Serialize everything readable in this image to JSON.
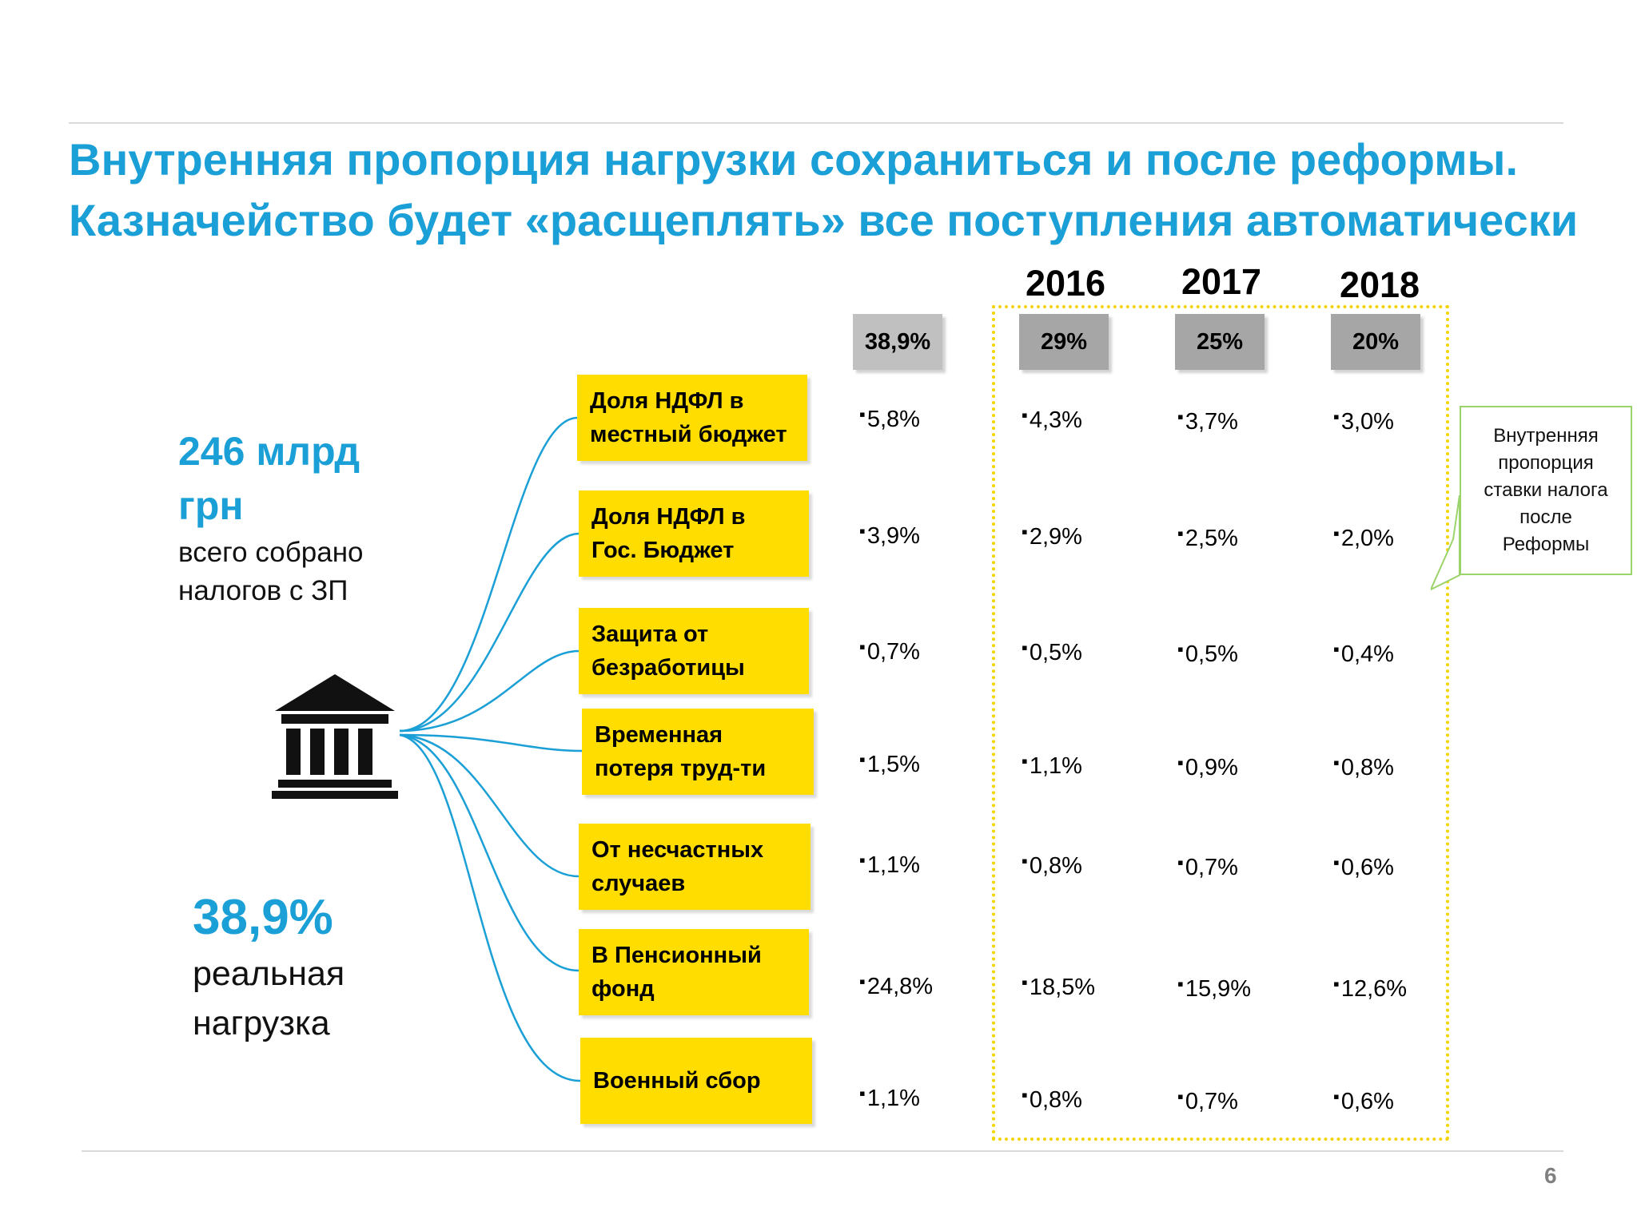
{
  "title": {
    "line1": "Внутренняя пропорция нагрузки сохраниться и после реформы.",
    "line2": "Казначейство будет «расщеплять» все поступления автоматически"
  },
  "summary": {
    "total_line1": "246 млрд",
    "total_line2": "грн",
    "total_desc_line1": "всего собрано",
    "total_desc_line2": "налогов с ЗП",
    "rate_value": "38,9%",
    "rate_desc_line1": "реальная",
    "rate_desc_line2": "нагрузка"
  },
  "icons": {
    "treasury": "bank-building-icon"
  },
  "years": [
    "2016",
    "2017",
    "2018"
  ],
  "header_totals": [
    "38,9%",
    "29%",
    "25%",
    "20%"
  ],
  "categories": [
    "Доля НДФЛ в местный бюджет",
    "Доля НДФЛ в Гос. Бюджет",
    "Защита от безработицы",
    "Временная потеря труд-ти",
    "От несчастных случаев",
    "В Пенсионный фонд",
    "Военный сбор"
  ],
  "rows": [
    [
      "5,8%",
      "4,3%",
      "3,7%",
      "3,0%"
    ],
    [
      "3,9%",
      "2,9%",
      "2,5%",
      "2,0%"
    ],
    [
      "0,7%",
      "0,5%",
      "0,5%",
      "0,4%"
    ],
    [
      "1,5%",
      "1,1%",
      "0,9%",
      "0,8%"
    ],
    [
      "1,1%",
      "0,8%",
      "0,7%",
      "0,6%"
    ],
    [
      "24,8%",
      "18,5%",
      "15,9%",
      "12,6%"
    ],
    [
      "1,1%",
      "0,8%",
      "0,7%",
      "0,6%"
    ]
  ],
  "callout": {
    "lines": [
      "Внутренняя",
      "пропорция",
      "ставки налога",
      "после",
      "Реформы"
    ]
  },
  "colors": {
    "accent_blue": "#1a9fd6",
    "yellow": "#ffdd00",
    "header_current": "#c0c0c0",
    "header_future": "#a6a6a6"
  },
  "page_number": "6"
}
